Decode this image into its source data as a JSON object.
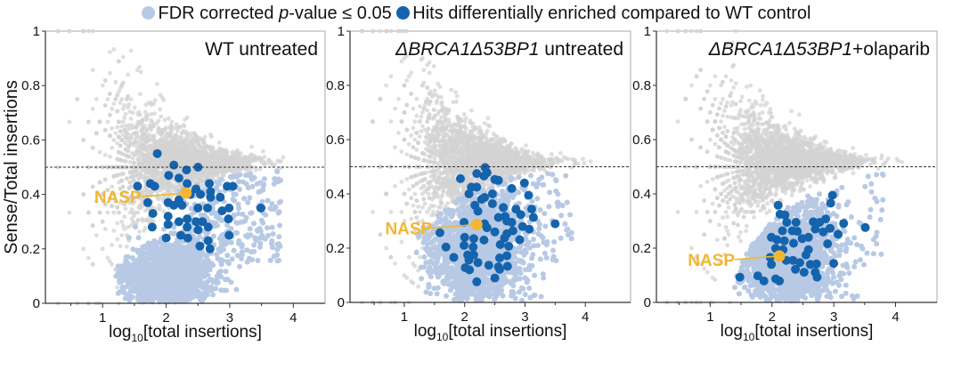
{
  "colors": {
    "not_significant": "#d3d3d3",
    "fdr_significant": "#b7c9e4",
    "hits": "#1463ad",
    "highlight": "#f2b632",
    "reference_line": "#333333"
  },
  "legend": [
    {
      "label_pre": "FDR corrected ",
      "label_italic": "p",
      "label_post": "-value ≤ 0.05",
      "color": "#b7c9e4"
    },
    {
      "label_pre": "Hits differentially enriched compared to WT control",
      "label_italic": "",
      "label_post": "",
      "color": "#1463ad"
    }
  ],
  "chart_data": [
    {
      "type": "scatter",
      "title_italic": "",
      "title_rest": "WT untreated",
      "xlabel_main": "log",
      "xlabel_sub": "10",
      "xlabel_rest": "[total insertions]",
      "ylabel": "Sense/Total insertions",
      "xlim": [
        0.1,
        4.5
      ],
      "ylim": [
        0,
        1
      ],
      "xticks": [
        1,
        2,
        3,
        4
      ],
      "yticks": [
        0,
        0.2,
        0.4,
        0.6,
        0.8,
        1
      ],
      "ytick_labels": [
        "0",
        "0.2",
        "0.4",
        "0.6",
        "0.8",
        "1"
      ],
      "reference_line_y": 0.5,
      "highlight": {
        "label": "NASP",
        "x": 2.31,
        "y": 0.405
      },
      "hits": [
        [
          1.86,
          0.55
        ],
        [
          2.12,
          0.508
        ],
        [
          2.32,
          0.49
        ],
        [
          2.5,
          0.5
        ],
        [
          1.55,
          0.43
        ],
        [
          1.75,
          0.44
        ],
        [
          1.82,
          0.43
        ],
        [
          2.04,
          0.47
        ],
        [
          2.2,
          0.46
        ],
        [
          2.33,
          0.44
        ],
        [
          2.47,
          0.42
        ],
        [
          2.68,
          0.44
        ],
        [
          2.7,
          0.41
        ],
        [
          2.96,
          0.43
        ],
        [
          3.05,
          0.43
        ],
        [
          2.85,
          0.39
        ],
        [
          2.7,
          0.39
        ],
        [
          2.54,
          0.4
        ],
        [
          2.38,
          0.4
        ],
        [
          2.2,
          0.38
        ],
        [
          2.03,
          0.37
        ],
        [
          1.71,
          0.37
        ],
        [
          2.12,
          0.36
        ],
        [
          2.25,
          0.36
        ],
        [
          2.5,
          0.35
        ],
        [
          2.65,
          0.35
        ],
        [
          2.88,
          0.34
        ],
        [
          2.99,
          0.35
        ],
        [
          3.49,
          0.35
        ],
        [
          1.79,
          0.33
        ],
        [
          2.03,
          0.32
        ],
        [
          2.2,
          0.3
        ],
        [
          2.33,
          0.31
        ],
        [
          2.47,
          0.3
        ],
        [
          2.57,
          0.3
        ],
        [
          2.98,
          0.31
        ],
        [
          2.03,
          0.29
        ],
        [
          1.78,
          0.28
        ],
        [
          2.33,
          0.28
        ],
        [
          2.5,
          0.27
        ],
        [
          2.66,
          0.28
        ],
        [
          2.0,
          0.24
        ],
        [
          2.23,
          0.25
        ],
        [
          2.34,
          0.24
        ],
        [
          2.66,
          0.23
        ],
        [
          2.53,
          0.21
        ],
        [
          2.69,
          0.2
        ],
        [
          2.99,
          0.25
        ]
      ]
    },
    {
      "type": "scatter",
      "title_italic": "ΔBRCA1Δ53BP1",
      "title_rest": " untreated",
      "xlabel_main": "log",
      "xlabel_sub": "10",
      "xlabel_rest": "[total insertions]",
      "ylabel": "",
      "xlim": [
        0.1,
        4.75
      ],
      "ylim": [
        0,
        1
      ],
      "xticks": [
        1,
        2,
        3,
        4
      ],
      "yticks": [
        0,
        0.2,
        0.4,
        0.6,
        0.8,
        1
      ],
      "ytick_labels": [
        "0",
        "0.2",
        "0.4",
        "0.6",
        "0.8",
        "1"
      ],
      "reference_line_y": 0.5,
      "highlight": {
        "label": "NASP",
        "x": 2.2,
        "y": 0.287
      },
      "hits": [
        [
          1.93,
          0.456
        ],
        [
          2.2,
          0.475
        ],
        [
          2.34,
          0.497
        ],
        [
          2.37,
          0.478
        ],
        [
          2.32,
          0.466
        ],
        [
          2.5,
          0.453
        ],
        [
          2.56,
          0.45
        ],
        [
          2.11,
          0.425
        ],
        [
          2.07,
          0.4
        ],
        [
          2.2,
          0.425
        ],
        [
          2.33,
          0.387
        ],
        [
          2.28,
          0.38
        ],
        [
          2.46,
          0.4
        ],
        [
          2.78,
          0.42
        ],
        [
          2.99,
          0.44
        ],
        [
          3.06,
          0.395
        ],
        [
          2.46,
          0.364
        ],
        [
          2.17,
          0.358
        ],
        [
          2.64,
          0.35
        ],
        [
          2.85,
          0.344
        ],
        [
          3.11,
          0.344
        ],
        [
          2.22,
          0.336
        ],
        [
          2.93,
          0.324
        ],
        [
          2.56,
          0.313
        ],
        [
          2.67,
          0.317
        ],
        [
          3.14,
          0.313
        ],
        [
          2.7,
          0.3
        ],
        [
          2.78,
          0.295
        ],
        [
          1.99,
          0.295
        ],
        [
          2.33,
          0.29
        ],
        [
          2.37,
          0.275
        ],
        [
          2.96,
          0.28
        ],
        [
          3.07,
          0.27
        ],
        [
          3.5,
          0.29
        ],
        [
          1.59,
          0.257
        ],
        [
          2.5,
          0.26
        ],
        [
          2.8,
          0.264
        ],
        [
          2.7,
          0.253
        ],
        [
          2.0,
          0.24
        ],
        [
          2.15,
          0.235
        ],
        [
          2.32,
          0.23
        ],
        [
          2.66,
          0.237
        ],
        [
          2.91,
          0.231
        ],
        [
          1.99,
          0.21
        ],
        [
          2.14,
          0.204
        ],
        [
          2.59,
          0.213
        ],
        [
          2.73,
          0.207
        ],
        [
          1.69,
          0.204
        ],
        [
          2.05,
          0.175
        ],
        [
          2.15,
          0.175
        ],
        [
          1.82,
          0.166
        ],
        [
          2.7,
          0.172
        ],
        [
          2.58,
          0.164
        ],
        [
          2.07,
          0.156
        ],
        [
          2.22,
          0.147
        ],
        [
          2.4,
          0.137
        ],
        [
          2.56,
          0.131
        ],
        [
          2.71,
          0.133
        ],
        [
          2.01,
          0.128
        ],
        [
          2.08,
          0.12
        ],
        [
          2.58,
          0.122
        ],
        [
          2.5,
          0.09
        ],
        [
          2.2,
          0.076
        ]
      ]
    },
    {
      "type": "scatter",
      "title_italic": "ΔBRCA1Δ53BP1",
      "title_rest": "+olaparib",
      "xlabel_main": "log",
      "xlabel_sub": "10",
      "xlabel_rest": "[total insertions]",
      "ylabel": "",
      "xlim": [
        0.13,
        4.67
      ],
      "ylim": [
        0,
        1
      ],
      "xticks": [
        1,
        2,
        3,
        4
      ],
      "yticks": [
        0,
        0.2,
        0.4,
        0.6,
        0.8,
        1
      ],
      "ytick_labels": [
        "0",
        "0.2",
        "0.4",
        "0.6",
        "0.8",
        "1"
      ],
      "reference_line_y": 0.5,
      "highlight": {
        "label": "NASP",
        "x": 2.12,
        "y": 0.171
      },
      "hits": [
        [
          2.98,
          0.395
        ],
        [
          2.95,
          0.366
        ],
        [
          2.1,
          0.358
        ],
        [
          2.13,
          0.325
        ],
        [
          2.21,
          0.322
        ],
        [
          2.24,
          0.295
        ],
        [
          2.39,
          0.295
        ],
        [
          2.67,
          0.297
        ],
        [
          2.77,
          0.295
        ],
        [
          2.87,
          0.308
        ],
        [
          3.16,
          0.291
        ],
        [
          3.51,
          0.276
        ],
        [
          2.17,
          0.264
        ],
        [
          2.33,
          0.264
        ],
        [
          2.41,
          0.262
        ],
        [
          2.7,
          0.27
        ],
        [
          2.83,
          0.26
        ],
        [
          2.94,
          0.273
        ],
        [
          3.07,
          0.251
        ],
        [
          1.99,
          0.24
        ],
        [
          2.08,
          0.231
        ],
        [
          2.2,
          0.227
        ],
        [
          2.35,
          0.218
        ],
        [
          2.49,
          0.235
        ],
        [
          2.59,
          0.24
        ],
        [
          2.9,
          0.216
        ],
        [
          2.06,
          0.199
        ],
        [
          2.18,
          0.194
        ],
        [
          2.59,
          0.194
        ],
        [
          2.55,
          0.175
        ],
        [
          1.97,
          0.166
        ],
        [
          2.23,
          0.155
        ],
        [
          2.34,
          0.155
        ],
        [
          2.45,
          0.147
        ],
        [
          2.62,
          0.14
        ],
        [
          2.72,
          0.142
        ],
        [
          3.0,
          0.144
        ],
        [
          1.99,
          0.14
        ],
        [
          2.38,
          0.122
        ],
        [
          2.7,
          0.111
        ],
        [
          2.52,
          0.111
        ],
        [
          1.77,
          0.098
        ],
        [
          1.48,
          0.093
        ],
        [
          2.73,
          0.093
        ],
        [
          2.06,
          0.087
        ],
        [
          1.87,
          0.079
        ],
        [
          2.12,
          0.079
        ]
      ]
    }
  ]
}
